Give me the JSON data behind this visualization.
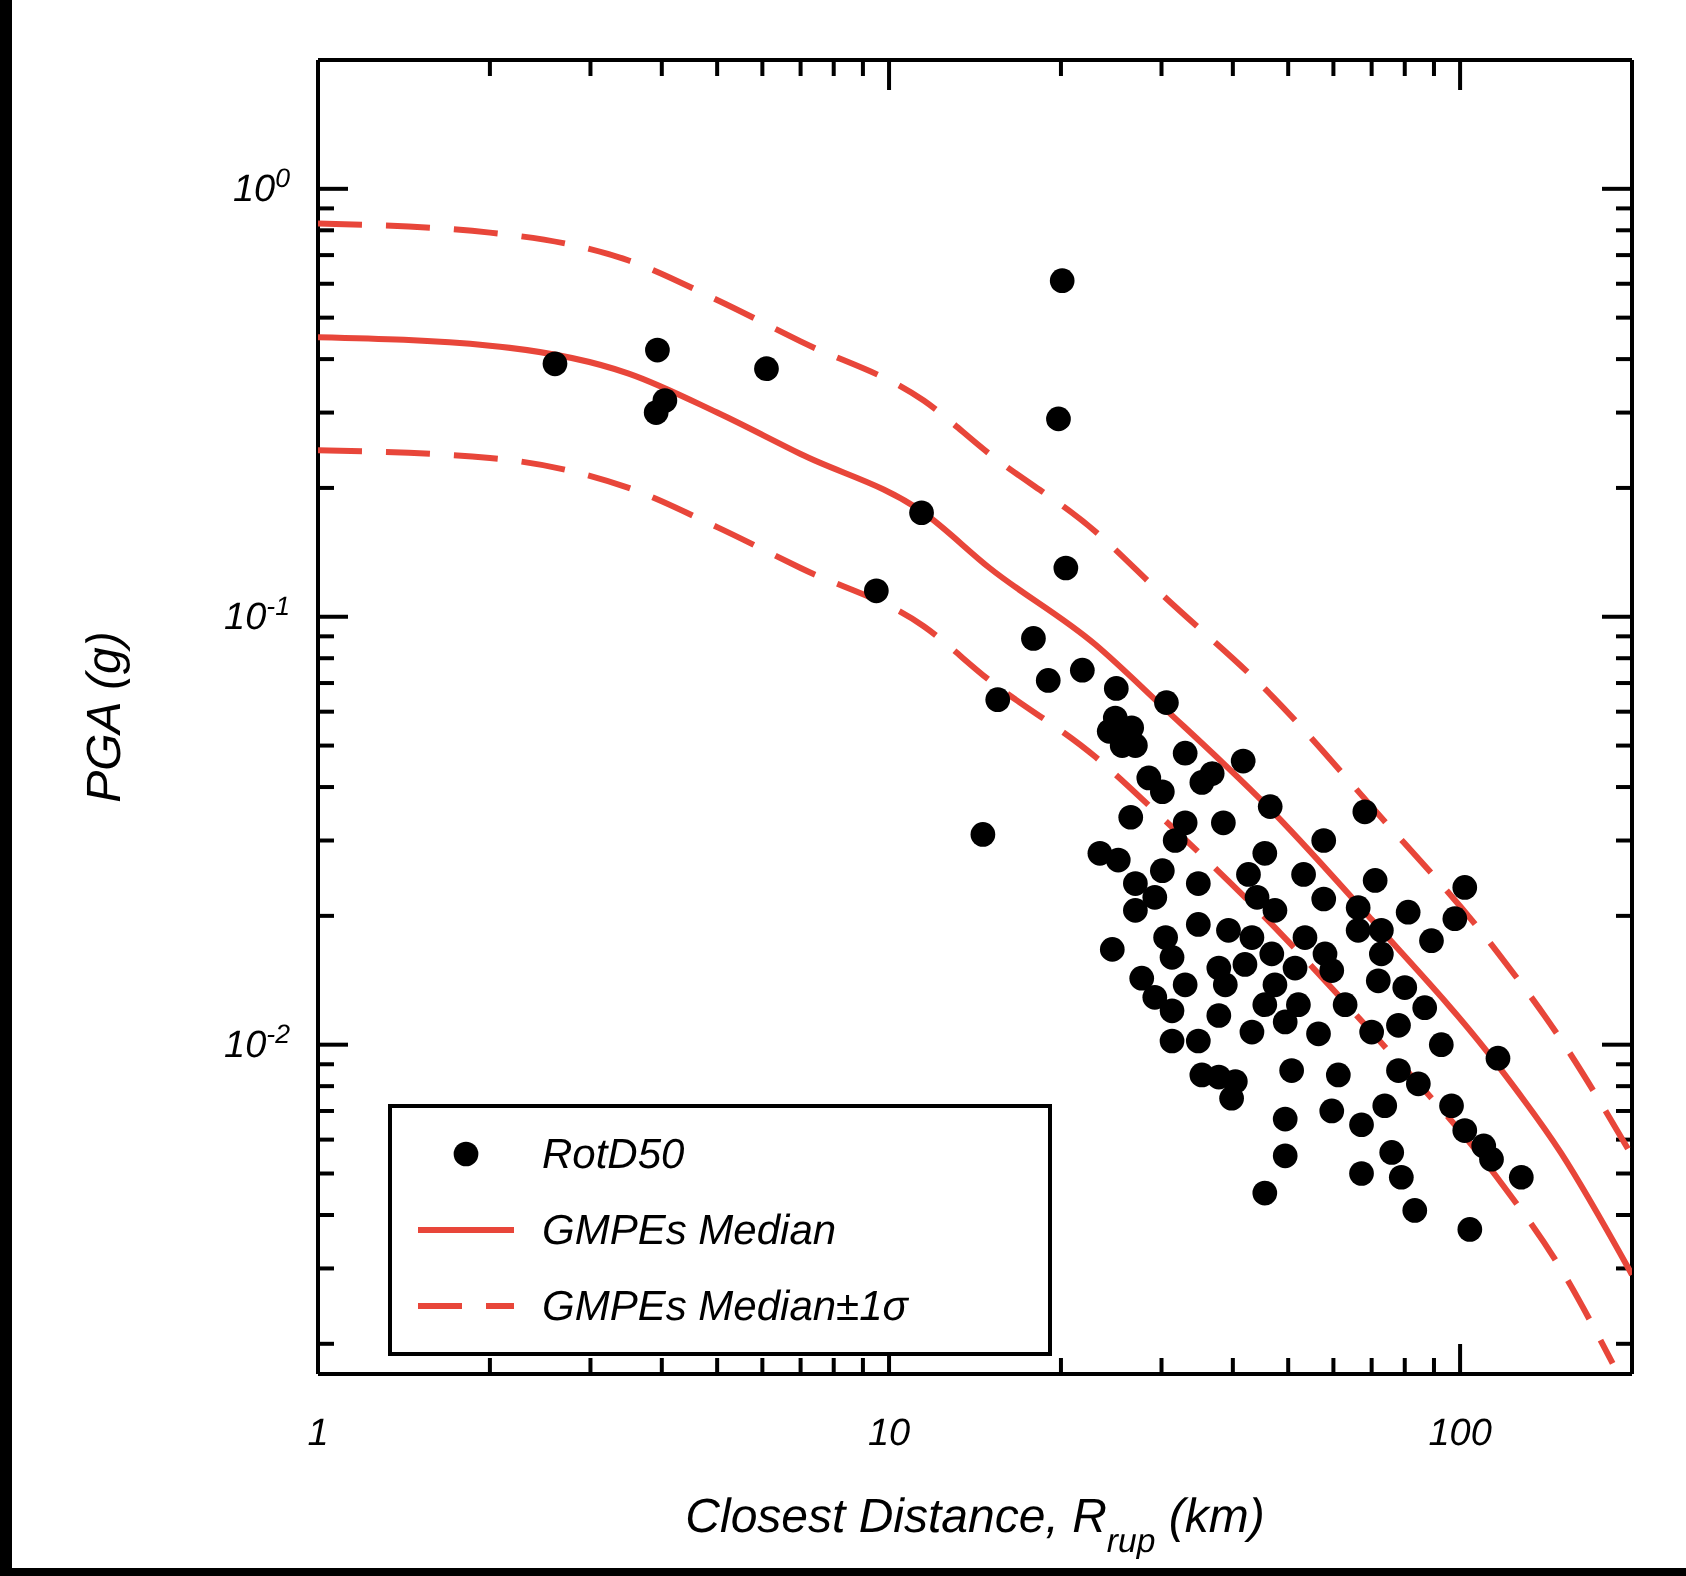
{
  "chart_data": {
    "type": "scatter",
    "xlabel": "Closest Distance, R$_{rup}$ (km)",
    "ylabel": "PGA (g)",
    "log": "xy",
    "grid": false,
    "legend": "bottom left",
    "xlim": [
      1,
      200
    ],
    "ylim": [
      0.0017,
      2
    ],
    "xticks": [
      1,
      {
        "value": 2,
        "label": null
      },
      {
        "value": 3,
        "label": null
      },
      {
        "value": 4,
        "label": null
      },
      {
        "value": 5,
        "label": null
      },
      {
        "value": 6,
        "label": null
      },
      {
        "value": 7,
        "label": null
      },
      {
        "value": 8,
        "label": null
      },
      {
        "value": 9,
        "label": null
      },
      10,
      {
        "value": 20,
        "label": null
      },
      {
        "value": 30,
        "label": null
      },
      {
        "value": 40,
        "label": null
      },
      {
        "value": 50,
        "label": null
      },
      {
        "value": 60,
        "label": null
      },
      {
        "value": 70,
        "label": null
      },
      {
        "value": 80,
        "label": null
      },
      {
        "value": 90,
        "label": null
      },
      100
    ],
    "yticks": [
      {
        "value": 0.002,
        "label": null
      },
      {
        "value": 0.003,
        "label": null
      },
      {
        "value": 0.004,
        "label": null
      },
      {
        "value": 0.005,
        "label": null
      },
      {
        "value": 0.006,
        "label": null
      },
      {
        "value": 0.007,
        "label": null
      },
      {
        "value": 0.008,
        "label": null
      },
      {
        "value": 0.009,
        "label": null
      },
      {
        "value": 0.01,
        "label": "10$^{-2}$"
      },
      {
        "value": 0.02,
        "label": null
      },
      {
        "value": 0.03,
        "label": null
      },
      {
        "value": 0.04,
        "label": null
      },
      {
        "value": 0.05,
        "label": null
      },
      {
        "value": 0.06,
        "label": null
      },
      {
        "value": 0.07,
        "label": null
      },
      {
        "value": 0.08,
        "label": null
      },
      {
        "value": 0.09,
        "label": null
      },
      {
        "value": 0.1,
        "label": "10$^{-1}$"
      },
      {
        "value": 0.2,
        "label": null
      },
      {
        "value": 0.3,
        "label": null
      },
      {
        "value": 0.4,
        "label": null
      },
      {
        "value": 0.5,
        "label": null
      },
      {
        "value": 0.6,
        "label": null
      },
      {
        "value": 0.7,
        "label": null
      },
      {
        "value": 0.8,
        "label": null
      },
      {
        "value": 0.9,
        "label": null
      },
      {
        "value": 1,
        "label": "10$^{0}$"
      }
    ],
    "series": [
      {
        "name": "RotD50",
        "color": "#000000",
        "marker": "circle",
        "x": [
          2.6,
          3.93,
          4.05,
          3.91,
          6.1,
          11.4,
          9.5,
          20.1,
          19.8,
          20.4,
          17.9,
          19.0,
          21.8,
          15.5,
          14.6,
          25.0,
          30.6,
          24.9,
          24.3,
          26.6,
          25.6,
          27.0,
          33.0,
          41.7,
          28.5,
          30.1,
          36.8,
          35.3,
          46.5,
          68.1,
          26.5,
          33.0,
          38.5,
          31.7,
          57.7,
          23.4,
          45.5,
          25.2,
          30.1,
          34.8,
          42.6,
          53.2,
          71.0,
          101.9,
          27.0,
          29.2,
          44.1,
          57.7,
          27.0,
          47.4,
          66.3,
          81.1,
          97.9,
          34.8,
          39.3,
          24.6,
          30.5,
          53.5,
          66.3,
          72.8,
          89.1,
          31.3,
          43.2,
          46.8,
          58.0,
          72.8,
          27.7,
          37.8,
          42.0,
          51.4,
          59.6,
          29.2,
          33.0,
          38.8,
          47.4,
          71.9,
          80.0,
          31.3,
          37.8,
          45.5,
          52.1,
          62.9,
          86.7,
          31.3,
          34.8,
          43.2,
          49.4,
          56.5,
          70.0,
          78.0,
          92.7,
          116.5,
          35.3,
          40.4,
          37.8,
          50.7,
          61.2,
          78.0,
          84.5,
          39.8,
          59.6,
          67.2,
          73.8,
          96.6,
          101.9,
          49.4,
          49.4,
          75.9,
          113.5,
          128,
          67.2,
          45.5,
          83.3,
          104,
          78.9,
          110
        ],
        "values": [
          0.39,
          0.42,
          0.32,
          0.3,
          0.38,
          0.175,
          0.115,
          0.61,
          0.29,
          0.13,
          0.089,
          0.071,
          0.075,
          0.064,
          0.031,
          0.068,
          0.063,
          0.058,
          0.054,
          0.055,
          0.05,
          0.05,
          0.048,
          0.046,
          0.042,
          0.039,
          0.043,
          0.041,
          0.036,
          0.035,
          0.034,
          0.033,
          0.033,
          0.03,
          0.03,
          0.028,
          0.028,
          0.027,
          0.0255,
          0.0238,
          0.025,
          0.025,
          0.0242,
          0.0233,
          0.0238,
          0.0221,
          0.0221,
          0.0219,
          0.0206,
          0.0206,
          0.0209,
          0.0204,
          0.0197,
          0.0191,
          0.0185,
          0.0167,
          0.0178,
          0.0178,
          0.0185,
          0.0185,
          0.0175,
          0.016,
          0.0178,
          0.0163,
          0.0163,
          0.0163,
          0.0143,
          0.0151,
          0.0154,
          0.0151,
          0.0149,
          0.0129,
          0.0138,
          0.0138,
          0.0138,
          0.0141,
          0.0136,
          0.012,
          0.0117,
          0.0124,
          0.0124,
          0.0124,
          0.0122,
          0.0102,
          0.0102,
          0.0107,
          0.0113,
          0.0106,
          0.0107,
          0.0111,
          0.01,
          0.0093,
          0.0085,
          0.0082,
          0.0084,
          0.0087,
          0.0085,
          0.0087,
          0.0081,
          0.0075,
          0.007,
          0.0065,
          0.0072,
          0.0072,
          0.0063,
          0.0067,
          0.0055,
          0.0056,
          0.0054,
          0.0049,
          0.005,
          0.0045,
          0.0041,
          0.0037,
          0.0049,
          0.0058
        ]
      },
      {
        "name": "GMPEs Median",
        "type": "line",
        "color": "#e8463a",
        "marker": "none",
        "line_style": "solid",
        "x": [
          1,
          2,
          3.5,
          5,
          7,
          11.5,
          15,
          23,
          30,
          47,
          70,
          116,
          150,
          200
        ],
        "values": [
          0.45,
          0.43,
          0.37,
          0.3,
          0.24,
          0.175,
          0.13,
          0.086,
          0.062,
          0.035,
          0.0196,
          0.009,
          0.0056,
          0.0029
        ]
      },
      {
        "name": "GMPEs Median±1σ",
        "type": "line",
        "color": "#e8463a",
        "marker": "none",
        "line_style": "dashed",
        "x": [
          1,
          2,
          3.5,
          5,
          7,
          11.5,
          15,
          23,
          30,
          47,
          70,
          116,
          150,
          200
        ],
        "values": [
          0.83,
          0.79,
          0.68,
          0.55,
          0.44,
          0.32,
          0.24,
          0.158,
          0.113,
          0.065,
          0.036,
          0.0165,
          0.0103,
          0.0055
        ]
      },
      {
        "type": "line",
        "color": "#e8463a",
        "marker": "none",
        "line_style": "dashed",
        "x": [
          1,
          2,
          3.5,
          5,
          7,
          11.5,
          15,
          23,
          30,
          47,
          70,
          116,
          150,
          185
        ],
        "values": [
          0.245,
          0.235,
          0.2,
          0.162,
          0.13,
          0.095,
          0.071,
          0.047,
          0.034,
          0.019,
          0.0107,
          0.0049,
          0.003,
          0.0018
        ]
      }
    ]
  }
}
